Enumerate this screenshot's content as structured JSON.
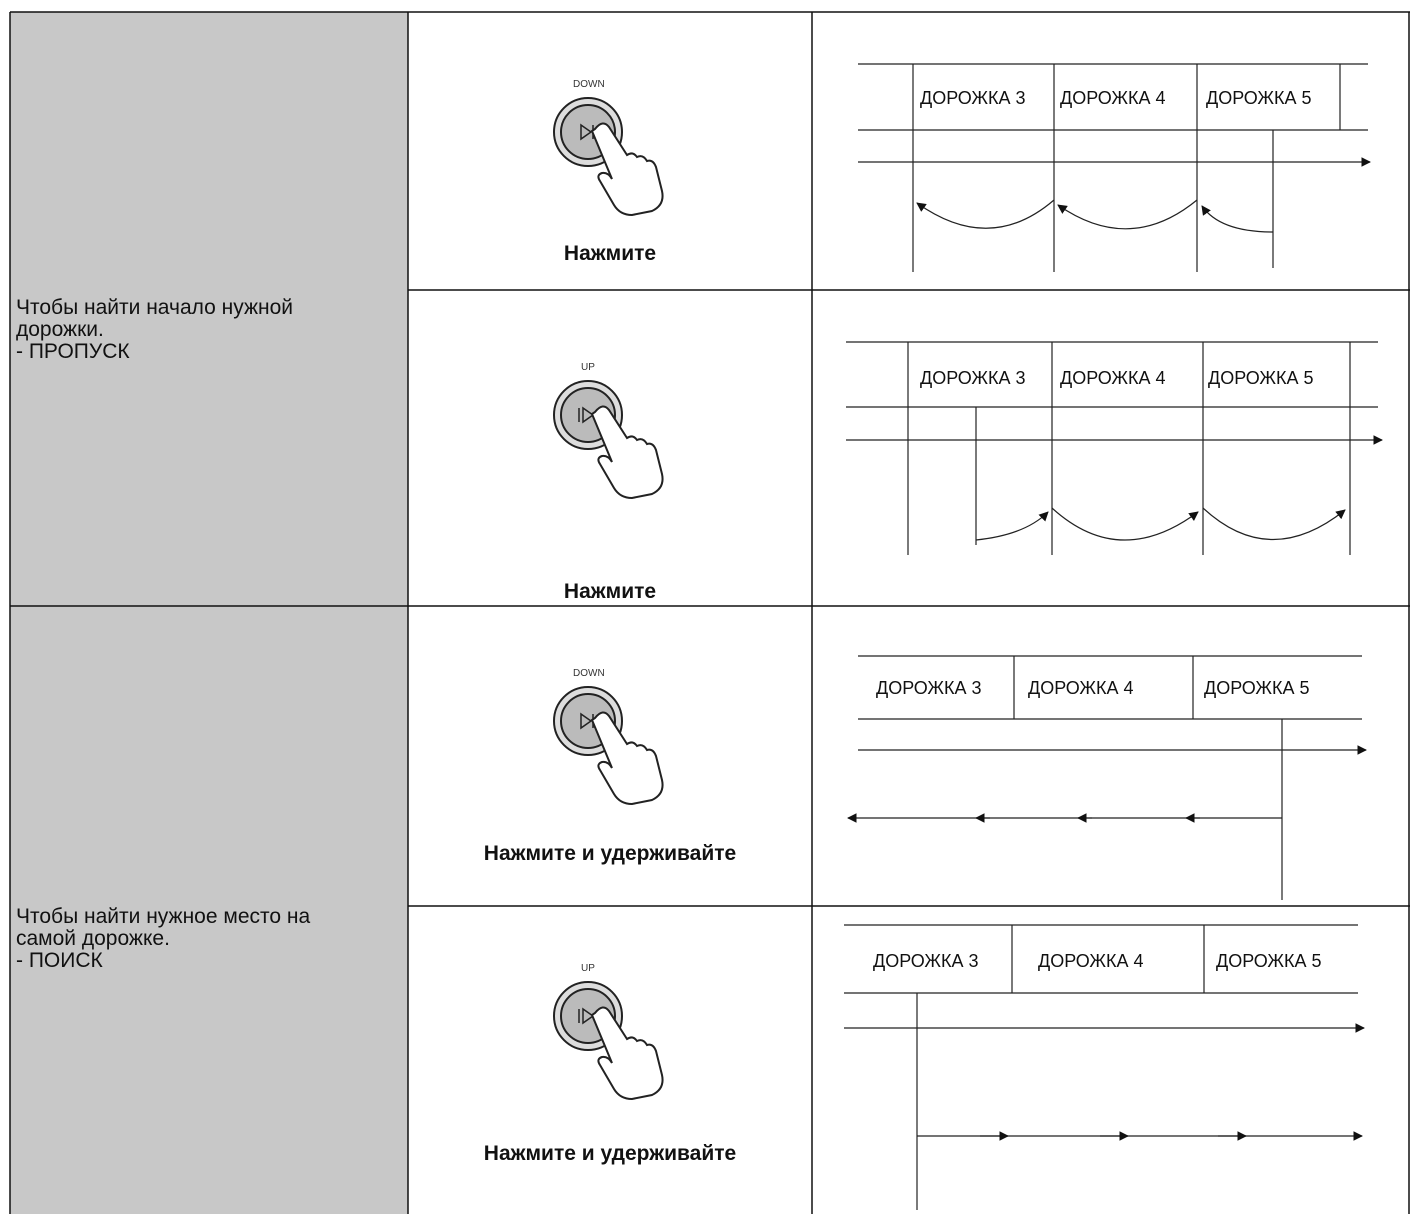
{
  "rows": [
    {
      "description": [
        "Чтобы найти начало нужной",
        "дорожки.",
        "- ПРОПУСК"
      ],
      "entries": [
        {
          "button_label": "DOWN",
          "caption": "Нажмите",
          "tracks": [
            "ДОРОЖКА 3",
            "ДОРОЖКА 4",
            "ДОРОЖКА 5"
          ]
        },
        {
          "button_label": "UP",
          "caption": "Нажмите",
          "tracks": [
            "ДОРОЖКА 3",
            "ДОРОЖКА 4",
            "ДОРОЖКА 5"
          ]
        }
      ]
    },
    {
      "description": [
        "Чтобы найти нужное место на",
        "самой дорожке.",
        "- ПОИСК"
      ],
      "entries": [
        {
          "button_label": "DOWN",
          "caption": "Нажмите и удерживайте",
          "tracks": [
            "ДОРОЖКА 3",
            "ДОРОЖКА 4",
            "ДОРОЖКА 5"
          ]
        },
        {
          "button_label": "UP",
          "caption": "Нажмите и удерживайте",
          "tracks": [
            "ДОРОЖКА 3",
            "ДОРОЖКА 4",
            "ДОРОЖКА 5"
          ]
        }
      ]
    }
  ]
}
